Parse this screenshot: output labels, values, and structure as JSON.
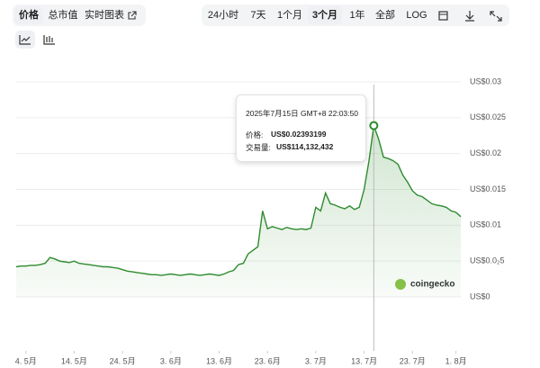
{
  "ui": {
    "tabs_left": [
      "价格",
      "总市值",
      "实时图表"
    ],
    "tabs_right": [
      "24小时",
      "7天",
      "1个月",
      "3个月",
      "1年",
      "全部",
      "LOG"
    ],
    "watermark": "coingecko",
    "tooltip": {
      "date": "2025年7月15日 GMT+8 22:03:50",
      "price_label": "价格:",
      "price": "US$0.02393199",
      "volume_label": "交易量:",
      "volume": "US$114,132,432"
    }
  },
  "chart_data": {
    "type": "line",
    "x": [
      "2025-05-02",
      "2025-05-03",
      "2025-05-04",
      "2025-05-05",
      "2025-05-06",
      "2025-05-07",
      "2025-05-08",
      "2025-05-09",
      "2025-05-10",
      "2025-05-11",
      "2025-05-12",
      "2025-05-13",
      "2025-05-14",
      "2025-05-15",
      "2025-05-16",
      "2025-05-17",
      "2025-05-18",
      "2025-05-19",
      "2025-05-20",
      "2025-05-21",
      "2025-05-22",
      "2025-05-23",
      "2025-05-24",
      "2025-05-25",
      "2025-05-26",
      "2025-05-27",
      "2025-05-28",
      "2025-05-29",
      "2025-05-30",
      "2025-05-31",
      "2025-06-01",
      "2025-06-02",
      "2025-06-03",
      "2025-06-04",
      "2025-06-05",
      "2025-06-06",
      "2025-06-07",
      "2025-06-08",
      "2025-06-09",
      "2025-06-10",
      "2025-06-11",
      "2025-06-12",
      "2025-06-13",
      "2025-06-14",
      "2025-06-15",
      "2025-06-16",
      "2025-06-17",
      "2025-06-18",
      "2025-06-19",
      "2025-06-20",
      "2025-06-21",
      "2025-06-22",
      "2025-06-23",
      "2025-06-24",
      "2025-06-25",
      "2025-06-26",
      "2025-06-27",
      "2025-06-28",
      "2025-06-29",
      "2025-06-30",
      "2025-07-01",
      "2025-07-02",
      "2025-07-03",
      "2025-07-04",
      "2025-07-05",
      "2025-07-06",
      "2025-07-07",
      "2025-07-08",
      "2025-07-09",
      "2025-07-10",
      "2025-07-11",
      "2025-07-12",
      "2025-07-13",
      "2025-07-14",
      "2025-07-15",
      "2025-07-16",
      "2025-07-17",
      "2025-07-18",
      "2025-07-19",
      "2025-07-20",
      "2025-07-21",
      "2025-07-22",
      "2025-07-23",
      "2025-07-24",
      "2025-07-25",
      "2025-07-26",
      "2025-07-27",
      "2025-07-28",
      "2025-07-29",
      "2025-07-30",
      "2025-07-31",
      "2025-08-01",
      "2025-08-02"
    ],
    "series": [
      {
        "name": "价格",
        "color": "#2e8b2e",
        "values": [
          0.0042,
          0.0043,
          0.0043,
          0.0044,
          0.0044,
          0.0045,
          0.0047,
          0.0055,
          0.0053,
          0.005,
          0.0049,
          0.0048,
          0.005,
          0.0047,
          0.0046,
          0.0045,
          0.0044,
          0.0043,
          0.0042,
          0.0042,
          0.0041,
          0.004,
          0.0038,
          0.0036,
          0.0035,
          0.0034,
          0.0033,
          0.0032,
          0.0031,
          0.0031,
          0.003,
          0.0031,
          0.0032,
          0.0031,
          0.003,
          0.0031,
          0.0032,
          0.0031,
          0.003,
          0.0031,
          0.0032,
          0.0031,
          0.003,
          0.0032,
          0.0035,
          0.0037,
          0.0045,
          0.0047,
          0.006,
          0.0065,
          0.007,
          0.012,
          0.0095,
          0.0098,
          0.0096,
          0.0094,
          0.0097,
          0.0095,
          0.0094,
          0.0095,
          0.0094,
          0.0096,
          0.0125,
          0.012,
          0.0145,
          0.013,
          0.0128,
          0.0125,
          0.0123,
          0.0127,
          0.0122,
          0.0125,
          0.015,
          0.019,
          0.0239,
          0.022,
          0.0195,
          0.0193,
          0.019,
          0.0185,
          0.017,
          0.016,
          0.0148,
          0.0142,
          0.014,
          0.0135,
          0.013,
          0.0128,
          0.0127,
          0.0125,
          0.012,
          0.0118,
          0.0112
        ]
      }
    ],
    "xlim": [
      "2025-05-02",
      "2025-08-02"
    ],
    "xticks": [
      {
        "value": "2025-05-04",
        "label": "4. 5月"
      },
      {
        "value": "2025-05-14",
        "label": "14. 5月"
      },
      {
        "value": "2025-05-24",
        "label": "24. 5月"
      },
      {
        "value": "2025-06-03",
        "label": "3. 6月"
      },
      {
        "value": "2025-06-13",
        "label": "13. 6月"
      },
      {
        "value": "2025-06-23",
        "label": "23. 6月"
      },
      {
        "value": "2025-07-03",
        "label": "3. 7月"
      },
      {
        "value": "2025-07-13",
        "label": "13. 7月"
      },
      {
        "value": "2025-07-23",
        "label": "23. 7月"
      },
      {
        "value": "2025-08-01",
        "label": "1. 8月"
      }
    ],
    "ylim": [
      0,
      0.03
    ],
    "yticks": [
      {
        "value": 0,
        "label": "US$0"
      },
      {
        "value": 0.005,
        "label": "US$0.0₂5"
      },
      {
        "value": 0.01,
        "label": "US$0.01"
      },
      {
        "value": 0.015,
        "label": "US$0.015"
      },
      {
        "value": 0.02,
        "label": "US$0.02"
      },
      {
        "value": 0.025,
        "label": "US$0.025"
      },
      {
        "value": 0.03,
        "label": "US$0.03"
      }
    ],
    "grid": true
  }
}
